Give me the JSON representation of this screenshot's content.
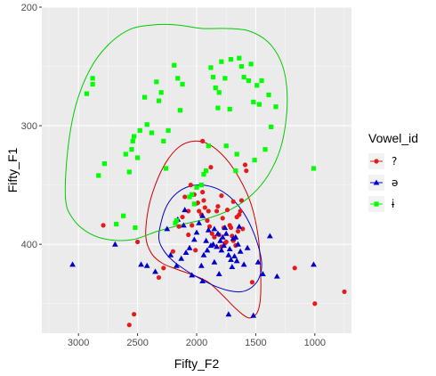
{
  "chart_data": {
    "type": "scatter",
    "xlabel": "Fifty_F2",
    "ylabel": "Fifty_F1",
    "x_reversed": true,
    "y_reversed": true,
    "xlim": [
      3310,
      690
    ],
    "ylim": [
      200,
      475
    ],
    "x_ticks": [
      3000,
      2500,
      2000,
      1500,
      1000
    ],
    "y_ticks": [
      200,
      300,
      400
    ],
    "grid": true,
    "legend_placement": "right",
    "legend_title": "Vowel_id",
    "series": [
      {
        "name": "?",
        "color": "#e41a1c",
        "marker": "circle",
        "points": [
          [
            2790,
            384
          ],
          [
            2500,
            398
          ],
          [
            2570,
            468
          ],
          [
            2530,
            459
          ],
          [
            2320,
            428
          ],
          [
            2280,
            420
          ],
          [
            2150,
            385
          ],
          [
            2120,
            377
          ],
          [
            2100,
            360
          ],
          [
            2070,
            392
          ],
          [
            2040,
            384
          ],
          [
            2010,
            366
          ],
          [
            1990,
            365
          ],
          [
            1980,
            372
          ],
          [
            1960,
            375
          ],
          [
            1950,
            356
          ],
          [
            1940,
            363
          ],
          [
            1930,
            369
          ],
          [
            1910,
            380
          ],
          [
            1900,
            372
          ],
          [
            1890,
            385
          ],
          [
            1870,
            391
          ],
          [
            1850,
            394
          ],
          [
            1830,
            372
          ],
          [
            1820,
            368
          ],
          [
            1810,
            392
          ],
          [
            1790,
            359
          ],
          [
            1780,
            378
          ],
          [
            1770,
            386
          ],
          [
            1760,
            399
          ],
          [
            1750,
            398
          ],
          [
            1740,
            371
          ],
          [
            1720,
            384
          ],
          [
            1710,
            386
          ],
          [
            1700,
            393
          ],
          [
            1690,
            364
          ],
          [
            1670,
            401
          ],
          [
            1660,
            377
          ],
          [
            1650,
            389
          ],
          [
            1640,
            375
          ],
          [
            1630,
            372
          ],
          [
            1620,
            363
          ],
          [
            1610,
            387
          ],
          [
            1880,
            335
          ],
          [
            2020,
            358
          ],
          [
            1590,
            333
          ],
          [
            1950,
            313
          ],
          [
            2070,
            372
          ],
          [
            1690,
            397
          ],
          [
            1530,
            432
          ],
          [
            1170,
            420
          ],
          [
            1000,
            450
          ],
          [
            750,
            440
          ],
          [
            2050,
            350
          ],
          [
            2200,
            406
          ],
          [
            2010,
            405
          ],
          [
            1790,
            402
          ],
          [
            1580,
            338
          ]
        ]
      },
      {
        "name": "ə",
        "color": "#0000cd",
        "marker": "triangle",
        "points": [
          [
            3050,
            417
          ],
          [
            2690,
            400
          ],
          [
            2470,
            417
          ],
          [
            2420,
            418
          ],
          [
            2350,
            423
          ],
          [
            2220,
            409
          ],
          [
            2170,
            418
          ],
          [
            2130,
            412
          ],
          [
            2090,
            407
          ],
          [
            2060,
            403
          ],
          [
            2040,
            426
          ],
          [
            2020,
            396
          ],
          [
            2000,
            390
          ],
          [
            1980,
            382
          ],
          [
            1960,
            418
          ],
          [
            1940,
            409
          ],
          [
            1920,
            397
          ],
          [
            1910,
            405
          ],
          [
            1900,
            388
          ],
          [
            1880,
            401
          ],
          [
            1860,
            400
          ],
          [
            1850,
            415
          ],
          [
            1830,
            402
          ],
          [
            1820,
            391
          ],
          [
            1810,
            425
          ],
          [
            1800,
            397
          ],
          [
            1790,
            405
          ],
          [
            1780,
            394
          ],
          [
            1770,
            401
          ],
          [
            1760,
            386
          ],
          [
            1750,
            391
          ],
          [
            1730,
            409
          ],
          [
            1720,
            404
          ],
          [
            1710,
            413
          ],
          [
            1700,
            419
          ],
          [
            1690,
            395
          ],
          [
            1680,
            410
          ],
          [
            1670,
            394
          ],
          [
            1660,
            414
          ],
          [
            1650,
            400
          ],
          [
            1640,
            385
          ],
          [
            1630,
            406
          ],
          [
            1600,
            417
          ],
          [
            1570,
            403
          ],
          [
            1480,
            415
          ],
          [
            1440,
            425
          ],
          [
            1380,
            393
          ],
          [
            1320,
            427
          ],
          [
            1010,
            417
          ],
          [
            1730,
            459
          ],
          [
            1520,
            460
          ],
          [
            2100,
            371
          ],
          [
            2250,
            387
          ],
          [
            1950,
            376
          ],
          [
            2160,
            379
          ],
          [
            2110,
            384
          ],
          [
            1850,
            387
          ],
          [
            1950,
            431
          ]
        ]
      },
      {
        "name": "ɨ",
        "color": "#00ff00",
        "marker": "square",
        "points": [
          [
            2930,
            273
          ],
          [
            2880,
            265
          ],
          [
            2880,
            260
          ],
          [
            2830,
            342
          ],
          [
            2780,
            332
          ],
          [
            2680,
            383
          ],
          [
            2620,
            376
          ],
          [
            2600,
            324
          ],
          [
            2570,
            339
          ],
          [
            2550,
            320
          ],
          [
            2540,
            313
          ],
          [
            2530,
            309
          ],
          [
            2520,
            386
          ],
          [
            2500,
            327
          ],
          [
            2480,
            304
          ],
          [
            2440,
            276
          ],
          [
            2420,
            299
          ],
          [
            2380,
            306
          ],
          [
            2340,
            263
          ],
          [
            2320,
            279
          ],
          [
            2300,
            272
          ],
          [
            2280,
            313
          ],
          [
            2260,
            336
          ],
          [
            2240,
            304
          ],
          [
            2190,
            249
          ],
          [
            2180,
            382
          ],
          [
            2170,
            380
          ],
          [
            2160,
            260
          ],
          [
            2140,
            287
          ],
          [
            2120,
            265
          ],
          [
            2060,
            360
          ],
          [
            2040,
            358
          ],
          [
            2020,
            366
          ],
          [
            2000,
            352
          ],
          [
            1960,
            350
          ],
          [
            1940,
            341
          ],
          [
            1920,
            338
          ],
          [
            1900,
            317
          ],
          [
            1880,
            251
          ],
          [
            1860,
            259
          ],
          [
            1840,
            268
          ],
          [
            1820,
            285
          ],
          [
            1810,
            272
          ],
          [
            1790,
            246
          ],
          [
            1760,
            260
          ],
          [
            1720,
            286
          ],
          [
            1710,
            244
          ],
          [
            1670,
            338
          ],
          [
            1660,
            324
          ],
          [
            1640,
            243
          ],
          [
            1620,
            250
          ],
          [
            1600,
            259
          ],
          [
            1560,
            262
          ],
          [
            1540,
            248
          ],
          [
            1520,
            280
          ],
          [
            1510,
            329
          ],
          [
            1490,
            266
          ],
          [
            1470,
            282
          ],
          [
            1450,
            262
          ],
          [
            1420,
            320
          ],
          [
            1390,
            274
          ],
          [
            1370,
            301
          ],
          [
            1330,
            284
          ],
          [
            1010,
            336
          ],
          [
            1750,
            317
          ]
        ]
      }
    ],
    "ellipses": [
      {
        "series": "?",
        "color": "#cc0000",
        "points": [
          [
            2430,
            394
          ],
          [
            2410,
            371
          ],
          [
            2350,
            350
          ],
          [
            2260,
            331
          ],
          [
            2150,
            318
          ],
          [
            2020,
            313
          ],
          [
            1890,
            316
          ],
          [
            1760,
            327
          ],
          [
            1640,
            344
          ],
          [
            1540,
            366
          ],
          [
            1480,
            393
          ],
          [
            1460,
            420
          ],
          [
            1460,
            445
          ],
          [
            1490,
            458
          ],
          [
            1560,
            462
          ],
          [
            1660,
            455
          ],
          [
            1780,
            443
          ],
          [
            1900,
            432
          ],
          [
            2030,
            426
          ],
          [
            2170,
            421
          ],
          [
            2290,
            416
          ],
          [
            2380,
            408
          ],
          [
            2430,
            394
          ]
        ]
      },
      {
        "series": "ə",
        "color": "#0000cd",
        "points": [
          [
            2320,
            395
          ],
          [
            2300,
            381
          ],
          [
            2250,
            367
          ],
          [
            2170,
            357
          ],
          [
            2060,
            351
          ],
          [
            1950,
            350
          ],
          [
            1830,
            353
          ],
          [
            1720,
            360
          ],
          [
            1620,
            371
          ],
          [
            1540,
            385
          ],
          [
            1480,
            401
          ],
          [
            1450,
            416
          ],
          [
            1470,
            428
          ],
          [
            1530,
            436
          ],
          [
            1620,
            440
          ],
          [
            1730,
            439
          ],
          [
            1850,
            435
          ],
          [
            1970,
            429
          ],
          [
            2090,
            422
          ],
          [
            2200,
            414
          ],
          [
            2280,
            405
          ],
          [
            2320,
            395
          ]
        ]
      },
      {
        "series": "ɨ",
        "color": "#00cc00",
        "points": [
          [
            3110,
            361
          ],
          [
            3090,
            320
          ],
          [
            3020,
            282
          ],
          [
            2900,
            252
          ],
          [
            2750,
            232
          ],
          [
            2570,
            219
          ],
          [
            2370,
            215
          ],
          [
            2170,
            215
          ],
          [
            1950,
            218
          ],
          [
            1740,
            218
          ],
          [
            1560,
            220
          ],
          [
            1400,
            229
          ],
          [
            1290,
            245
          ],
          [
            1240,
            265
          ],
          [
            1240,
            292
          ],
          [
            1290,
            319
          ],
          [
            1390,
            341
          ],
          [
            1530,
            358
          ],
          [
            1700,
            370
          ],
          [
            1900,
            378
          ],
          [
            2110,
            383
          ],
          [
            2330,
            389
          ],
          [
            2540,
            396
          ],
          [
            2750,
            396
          ],
          [
            2920,
            390
          ],
          [
            3050,
            378
          ],
          [
            3110,
            361
          ]
        ]
      }
    ]
  }
}
